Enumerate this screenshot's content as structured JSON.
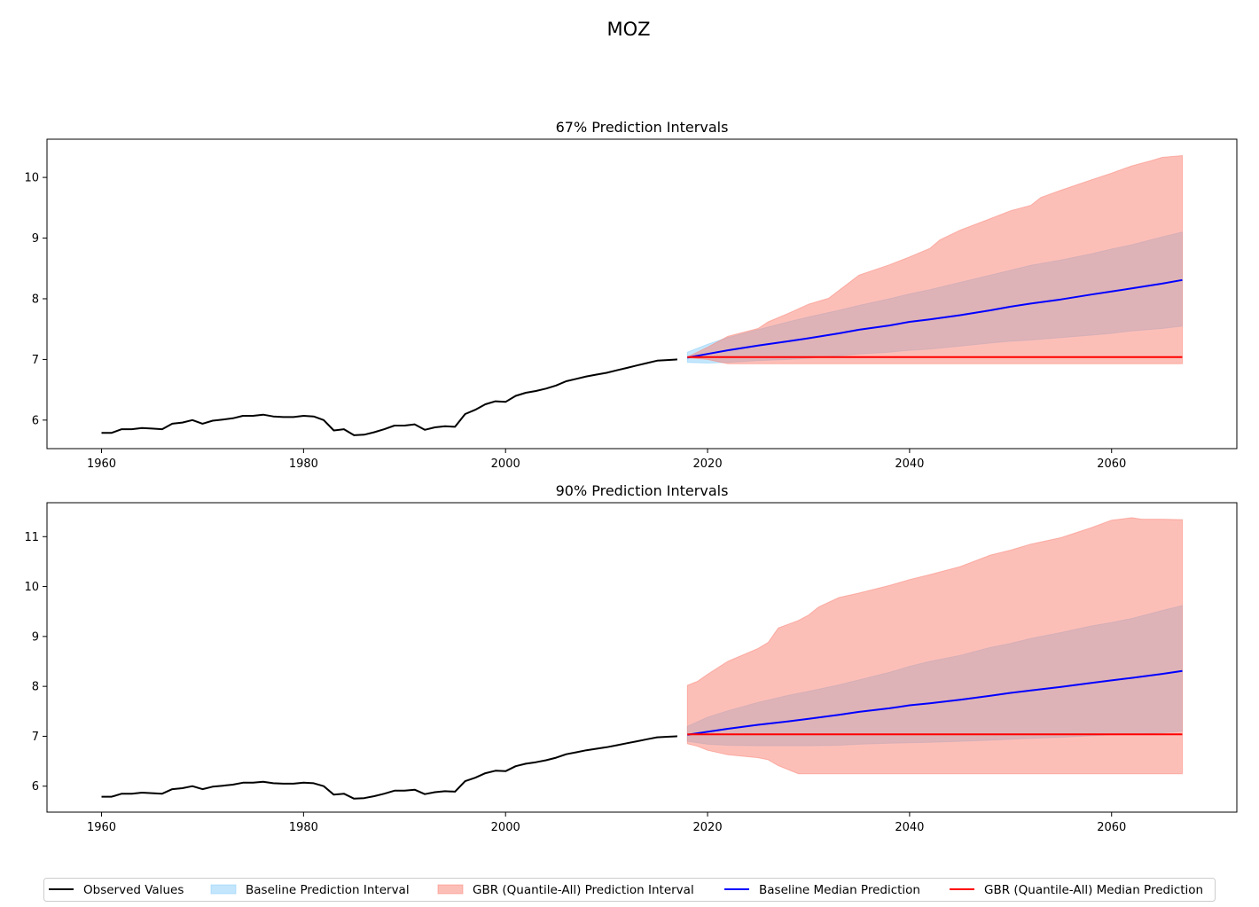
{
  "figure": {
    "title": "MOZ"
  },
  "legend": {
    "placement": "bottom-center",
    "items": [
      {
        "label": "Observed Values",
        "kind": "line",
        "color": "#000000"
      },
      {
        "label": "Baseline Prediction Interval",
        "kind": "patch",
        "color": "#87cefa"
      },
      {
        "label": "GBR (Quantile-All) Prediction Interval",
        "kind": "patch",
        "color": "#fa8072"
      },
      {
        "label": "Baseline Median Prediction",
        "kind": "line",
        "color": "#0000ff"
      },
      {
        "label": "GBR (Quantile-All) Median Prediction",
        "kind": "line",
        "color": "#ff0000"
      }
    ]
  },
  "chart_data": [
    {
      "type": "line",
      "title": "67% Prediction Intervals",
      "xlabel": "",
      "ylabel": "",
      "xlim": [
        1954.6,
        2072.4
      ],
      "ylim": [
        5.53,
        10.63
      ],
      "xticks": [
        1960,
        1980,
        2000,
        2020,
        2040,
        2060
      ],
      "yticks": [
        6,
        7,
        8,
        9,
        10
      ],
      "grid": false,
      "observed": {
        "name": "Observed Values",
        "x": [
          1960,
          1961,
          1962,
          1963,
          1964,
          1965,
          1966,
          1967,
          1968,
          1969,
          1970,
          1971,
          1972,
          1973,
          1974,
          1975,
          1976,
          1977,
          1978,
          1979,
          1980,
          1981,
          1982,
          1983,
          1984,
          1985,
          1986,
          1987,
          1988,
          1989,
          1990,
          1991,
          1992,
          1993,
          1994,
          1995,
          1996,
          1997,
          1998,
          1999,
          2000,
          2001,
          2002,
          2003,
          2004,
          2005,
          2006,
          2007,
          2008,
          2009,
          2010,
          2011,
          2012,
          2013,
          2014,
          2015,
          2016,
          2017
        ],
        "y": [
          5.79,
          5.79,
          5.85,
          5.85,
          5.87,
          5.86,
          5.85,
          5.94,
          5.96,
          6.0,
          5.94,
          5.99,
          6.01,
          6.03,
          6.07,
          6.07,
          6.09,
          6.06,
          6.05,
          6.05,
          6.07,
          6.06,
          6.0,
          5.83,
          5.85,
          5.75,
          5.76,
          5.8,
          5.85,
          5.91,
          5.91,
          5.93,
          5.84,
          5.88,
          5.9,
          5.89,
          6.1,
          6.17,
          6.26,
          6.31,
          6.3,
          6.4,
          6.45,
          6.48,
          6.52,
          6.57,
          6.64,
          6.68,
          6.72,
          6.75,
          6.78,
          6.82,
          6.86,
          6.9,
          6.94,
          6.98,
          6.99,
          7.0
        ]
      },
      "baseline_median": {
        "name": "Baseline Median Prediction",
        "x": [
          2018,
          2020,
          2022,
          2025,
          2028,
          2030,
          2033,
          2035,
          2038,
          2040,
          2042,
          2045,
          2048,
          2050,
          2052,
          2055,
          2058,
          2060,
          2062,
          2065,
          2067
        ],
        "y": [
          7.03,
          7.09,
          7.15,
          7.23,
          7.3,
          7.35,
          7.43,
          7.49,
          7.56,
          7.62,
          7.66,
          7.73,
          7.81,
          7.87,
          7.92,
          7.99,
          8.07,
          8.12,
          8.17,
          8.25,
          8.31
        ]
      },
      "baseline_interval": {
        "name": "Baseline Prediction Interval",
        "x": [
          2018,
          2020,
          2022,
          2025,
          2028,
          2030,
          2033,
          2035,
          2038,
          2040,
          2042,
          2045,
          2048,
          2050,
          2052,
          2055,
          2058,
          2060,
          2062,
          2065,
          2067
        ],
        "lower": [
          6.95,
          6.94,
          6.95,
          6.98,
          7.0,
          7.02,
          7.06,
          7.09,
          7.12,
          7.15,
          7.17,
          7.22,
          7.27,
          7.3,
          7.32,
          7.36,
          7.4,
          7.43,
          7.47,
          7.51,
          7.55
        ],
        "upper": [
          7.12,
          7.25,
          7.36,
          7.49,
          7.62,
          7.7,
          7.81,
          7.89,
          8.0,
          8.08,
          8.15,
          8.27,
          8.39,
          8.47,
          8.55,
          8.64,
          8.74,
          8.82,
          8.89,
          9.02,
          9.1
        ]
      },
      "gbr_median": {
        "name": "GBR (Quantile-All) Median Prediction",
        "x": [
          2018,
          2067
        ],
        "y": [
          7.04,
          7.04
        ]
      },
      "gbr_interval": {
        "name": "GBR (Quantile-All) Prediction Interval",
        "x": [
          2018,
          2020,
          2022,
          2025,
          2026,
          2028,
          2030,
          2032,
          2035,
          2038,
          2040,
          2042,
          2043,
          2045,
          2048,
          2050,
          2052,
          2053,
          2055,
          2058,
          2060,
          2062,
          2064,
          2065,
          2067
        ],
        "lower": [
          7.03,
          7.0,
          6.93,
          6.93,
          6.93,
          6.93,
          6.93,
          6.93,
          6.93,
          6.93,
          6.93,
          6.93,
          6.93,
          6.93,
          6.93,
          6.93,
          6.93,
          6.93,
          6.93,
          6.93,
          6.93,
          6.93,
          6.93,
          6.93,
          6.93
        ],
        "upper": [
          7.04,
          7.2,
          7.38,
          7.51,
          7.62,
          7.76,
          7.91,
          8.01,
          8.39,
          8.56,
          8.69,
          8.83,
          8.97,
          9.13,
          9.32,
          9.45,
          9.54,
          9.67,
          9.79,
          9.96,
          10.07,
          10.19,
          10.28,
          10.33,
          10.36
        ]
      }
    },
    {
      "type": "line",
      "title": "90% Prediction Intervals",
      "xlabel": "",
      "ylabel": "",
      "xlim": [
        1954.6,
        2072.4
      ],
      "ylim": [
        5.48,
        11.68
      ],
      "xticks": [
        1960,
        1980,
        2000,
        2020,
        2040,
        2060
      ],
      "yticks": [
        6,
        7,
        8,
        9,
        10,
        11
      ],
      "grid": false,
      "observed": {
        "name": "Observed Values",
        "x": [
          1960,
          1961,
          1962,
          1963,
          1964,
          1965,
          1966,
          1967,
          1968,
          1969,
          1970,
          1971,
          1972,
          1973,
          1974,
          1975,
          1976,
          1977,
          1978,
          1979,
          1980,
          1981,
          1982,
          1983,
          1984,
          1985,
          1986,
          1987,
          1988,
          1989,
          1990,
          1991,
          1992,
          1993,
          1994,
          1995,
          1996,
          1997,
          1998,
          1999,
          2000,
          2001,
          2002,
          2003,
          2004,
          2005,
          2006,
          2007,
          2008,
          2009,
          2010,
          2011,
          2012,
          2013,
          2014,
          2015,
          2016,
          2017
        ],
        "y": [
          5.79,
          5.79,
          5.85,
          5.85,
          5.87,
          5.86,
          5.85,
          5.94,
          5.96,
          6.0,
          5.94,
          5.99,
          6.01,
          6.03,
          6.07,
          6.07,
          6.09,
          6.06,
          6.05,
          6.05,
          6.07,
          6.06,
          6.0,
          5.83,
          5.85,
          5.75,
          5.76,
          5.8,
          5.85,
          5.91,
          5.91,
          5.93,
          5.84,
          5.88,
          5.9,
          5.89,
          6.1,
          6.17,
          6.26,
          6.31,
          6.3,
          6.4,
          6.45,
          6.48,
          6.52,
          6.57,
          6.64,
          6.68,
          6.72,
          6.75,
          6.78,
          6.82,
          6.86,
          6.9,
          6.94,
          6.98,
          6.99,
          7.0
        ]
      },
      "baseline_median": {
        "name": "Baseline Median Prediction",
        "x": [
          2018,
          2020,
          2022,
          2025,
          2028,
          2030,
          2033,
          2035,
          2038,
          2040,
          2042,
          2045,
          2048,
          2050,
          2052,
          2055,
          2058,
          2060,
          2062,
          2065,
          2067
        ],
        "y": [
          7.03,
          7.09,
          7.15,
          7.23,
          7.3,
          7.35,
          7.43,
          7.49,
          7.56,
          7.62,
          7.66,
          7.73,
          7.81,
          7.87,
          7.92,
          7.99,
          8.07,
          8.12,
          8.17,
          8.25,
          8.31
        ]
      },
      "baseline_interval": {
        "name": "Baseline Prediction Interval",
        "x": [
          2018,
          2020,
          2022,
          2025,
          2028,
          2030,
          2033,
          2035,
          2038,
          2040,
          2042,
          2045,
          2048,
          2050,
          2052,
          2055,
          2058,
          2060,
          2062,
          2065,
          2067
        ],
        "lower": [
          6.9,
          6.84,
          6.82,
          6.81,
          6.81,
          6.81,
          6.82,
          6.84,
          6.86,
          6.87,
          6.88,
          6.9,
          6.92,
          6.94,
          6.96,
          6.98,
          7.01,
          7.03,
          7.04,
          7.07,
          7.1
        ],
        "upper": [
          7.2,
          7.38,
          7.51,
          7.68,
          7.82,
          7.9,
          8.03,
          8.13,
          8.28,
          8.4,
          8.5,
          8.62,
          8.78,
          8.86,
          8.96,
          9.08,
          9.21,
          9.28,
          9.36,
          9.52,
          9.62
        ]
      },
      "gbr_median": {
        "name": "GBR (Quantile-All) Median Prediction",
        "x": [
          2018,
          2067
        ],
        "y": [
          7.04,
          7.04
        ]
      },
      "gbr_interval": {
        "name": "GBR (Quantile-All) Prediction Interval",
        "x": [
          2018,
          2019,
          2020,
          2022,
          2025,
          2026,
          2027,
          2029,
          2030,
          2031,
          2033,
          2035,
          2038,
          2040,
          2042,
          2045,
          2048,
          2050,
          2052,
          2055,
          2058,
          2060,
          2062,
          2063,
          2065,
          2067
        ],
        "lower": [
          6.85,
          6.8,
          6.72,
          6.63,
          6.57,
          6.53,
          6.41,
          6.25,
          6.25,
          6.25,
          6.25,
          6.25,
          6.25,
          6.25,
          6.25,
          6.25,
          6.25,
          6.25,
          6.25,
          6.25,
          6.25,
          6.25,
          6.25,
          6.25,
          6.25,
          6.25
        ],
        "upper": [
          8.02,
          8.1,
          8.24,
          8.5,
          8.76,
          8.88,
          9.17,
          9.32,
          9.43,
          9.59,
          9.78,
          9.87,
          10.02,
          10.14,
          10.24,
          10.4,
          10.63,
          10.73,
          10.85,
          10.98,
          11.18,
          11.33,
          11.38,
          11.35,
          11.35,
          11.34
        ]
      }
    }
  ]
}
